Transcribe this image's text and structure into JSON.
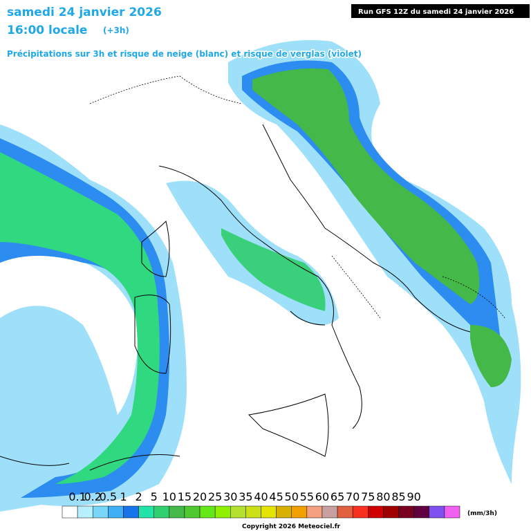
{
  "header": {
    "date": "samedi 24 janvier 2026",
    "time": "16:00 locale",
    "offset": "(+3h)",
    "subtitle": "Précipitations sur 3h et risque de neige (blanc) et risque de verglas (violet)",
    "run": "Run GFS 12Z du samedi 24 janvier 2026"
  },
  "legend": {
    "labels": [
      "0.1",
      "0.2",
      "0.5",
      "1",
      "2",
      "5",
      "10",
      "15",
      "20",
      "25",
      "30",
      "35",
      "40",
      "45",
      "50",
      "55",
      "60",
      "65",
      "70",
      "75",
      "80",
      "85",
      "90"
    ],
    "colors": [
      "#ffffff",
      "#b8f0ff",
      "#7ad6f8",
      "#3fb0f5",
      "#1874ea",
      "#22e4a8",
      "#30d070",
      "#44b848",
      "#50c830",
      "#66e818",
      "#90f000",
      "#b4e030",
      "#cce018",
      "#e4e400",
      "#d8b000",
      "#f2a000",
      "#f4a080",
      "#c8a0a0",
      "#e06040",
      "#f83020",
      "#d00000",
      "#a00000",
      "#780020",
      "#600040",
      "#8050f0",
      "#f060f0"
    ],
    "unit": "(mm/3h)"
  },
  "footer": {
    "copyright": "Copyright 2026 Meteociel.fr"
  }
}
